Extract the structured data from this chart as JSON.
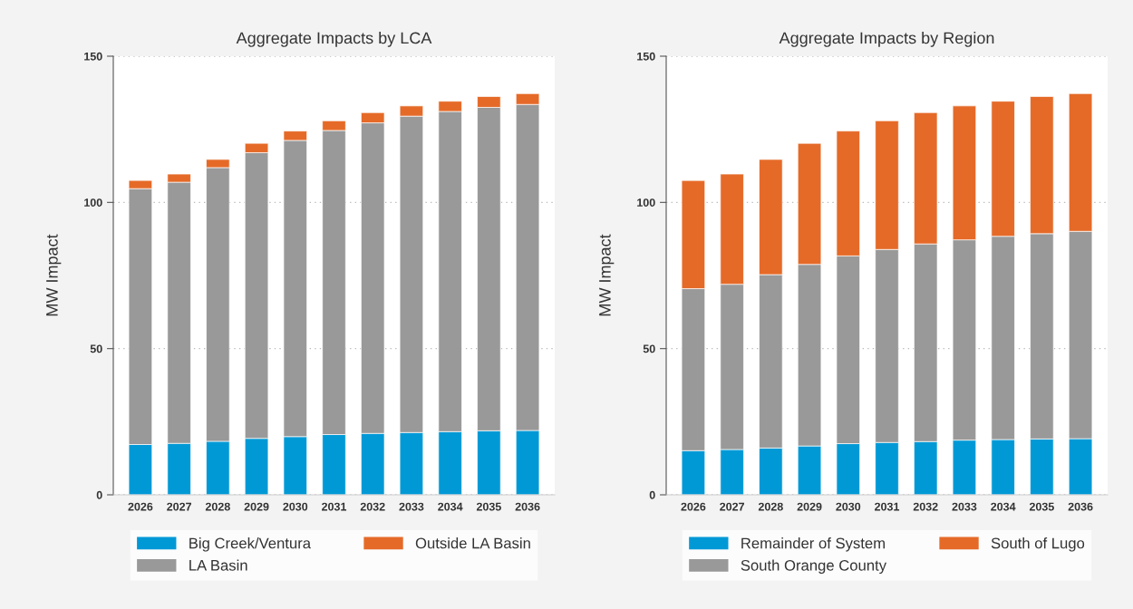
{
  "chart_data": [
    {
      "type": "bar",
      "title": "Aggregate Impacts by LCA",
      "ylabel": "MW Impact",
      "stacked": true,
      "categories": [
        "2026",
        "2027",
        "2028",
        "2029",
        "2030",
        "2031",
        "2032",
        "2033",
        "2034",
        "2035",
        "2036"
      ],
      "series": [
        {
          "name": "Big Creek/Ventura",
          "color": "#0099d6",
          "values": [
            17.2,
            17.6,
            18.3,
            19.3,
            19.9,
            20.6,
            21.0,
            21.3,
            21.6,
            21.9,
            22.0
          ]
        },
        {
          "name": "LA Basin",
          "color": "#999999",
          "values": [
            87.5,
            89.3,
            93.6,
            97.7,
            101.3,
            104.0,
            106.2,
            108.2,
            109.5,
            110.6,
            111.5
          ]
        },
        {
          "name": "Outside LA Basin",
          "color": "#e56a28",
          "values": [
            2.8,
            2.8,
            2.8,
            3.2,
            3.2,
            3.3,
            3.5,
            3.5,
            3.5,
            3.7,
            3.7
          ]
        }
      ],
      "ylim": [
        0,
        150
      ],
      "yticks": [
        0,
        50,
        100,
        150
      ],
      "grid": "y",
      "legend": "bottom"
    },
    {
      "type": "bar",
      "title": "Aggregate Impacts by Region",
      "ylabel": "MW Impact",
      "stacked": true,
      "categories": [
        "2026",
        "2027",
        "2028",
        "2029",
        "2030",
        "2031",
        "2032",
        "2033",
        "2034",
        "2035",
        "2036"
      ],
      "series": [
        {
          "name": "Remainder of System",
          "color": "#0099d6",
          "values": [
            15.1,
            15.5,
            16.0,
            16.7,
            17.5,
            17.9,
            18.2,
            18.7,
            18.9,
            19.1,
            19.2
          ]
        },
        {
          "name": "South Orange County",
          "color": "#999999",
          "values": [
            55.4,
            56.5,
            59.3,
            62.1,
            64.2,
            66.0,
            67.6,
            68.5,
            69.5,
            70.2,
            70.9
          ]
        },
        {
          "name": "South of Lugo",
          "color": "#e56a28",
          "values": [
            37.0,
            37.7,
            39.4,
            41.4,
            42.7,
            44.0,
            44.9,
            45.8,
            46.2,
            46.9,
            47.1
          ]
        }
      ],
      "ylim": [
        0,
        150
      ],
      "yticks": [
        0,
        50,
        100,
        150
      ],
      "grid": "y",
      "legend": "bottom"
    }
  ]
}
